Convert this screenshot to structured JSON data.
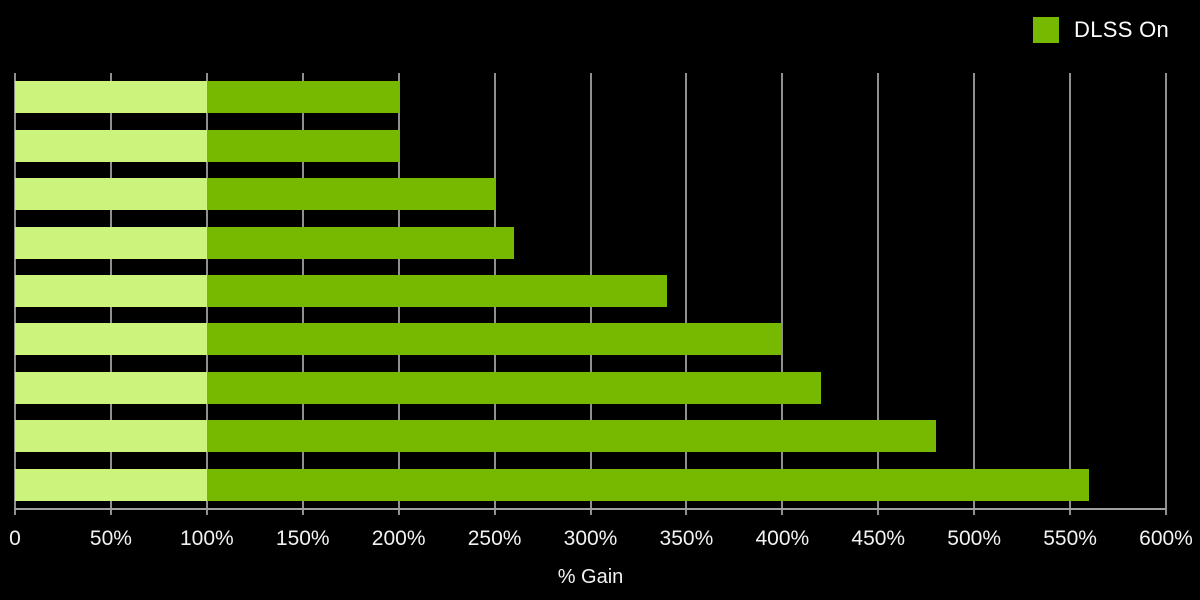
{
  "legend": {
    "dlss_on_label": "DLSS On"
  },
  "chart_data": {
    "type": "bar",
    "orientation": "horizontal",
    "title": "",
    "xlabel": "% Gain",
    "xlim": [
      0,
      600
    ],
    "xticks": [
      0,
      50,
      100,
      150,
      200,
      250,
      300,
      350,
      400,
      450,
      500,
      550,
      600
    ],
    "xtick_labels": [
      "0",
      "50%",
      "100%",
      "150%",
      "200%",
      "250%",
      "300%",
      "350%",
      "400%",
      "450%",
      "500%",
      "550%",
      "600%"
    ],
    "grid": true,
    "legend_position": "top-right",
    "legend": [
      {
        "name": "DLSS On",
        "color": "#76b900"
      }
    ],
    "values": [
      200,
      200,
      250,
      260,
      340,
      400,
      420,
      480,
      560
    ],
    "baseline_split_pct": 100,
    "colors": {
      "background": "#000000",
      "baseline_segment": "#ccf47c",
      "gain_segment": "#76b900",
      "gridline": "#8f8f8f",
      "axis_line": "#a0a0a0",
      "tick_text": "#f2f2f2",
      "legend_text": "#ffffff"
    }
  }
}
